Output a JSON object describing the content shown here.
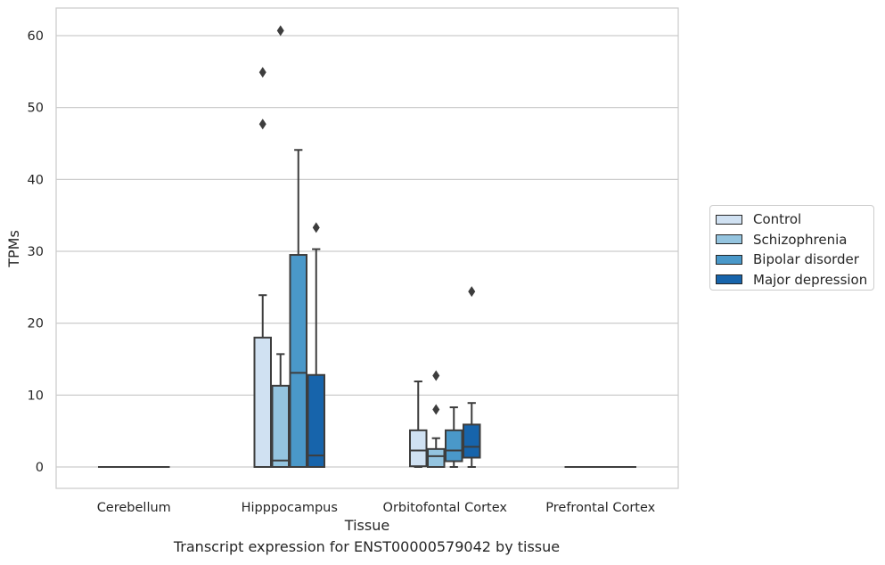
{
  "chart_data": {
    "type": "box",
    "xlabel": "Tissue",
    "ylabel": "TPMs",
    "caption": "Transcript expression for ENST00000579042 by tissue",
    "ylim": [
      -3,
      64
    ],
    "yticks": [
      0,
      10,
      20,
      30,
      40,
      50,
      60
    ],
    "grid": true,
    "legend_position": "right",
    "categories": [
      "Cerebellum",
      "Hipppocampus",
      "Orbitofontal Cortex",
      "Prefrontal Cortex"
    ],
    "series": [
      {
        "name": "Control",
        "color": "#d0e1f2"
      },
      {
        "name": "Schizophrenia",
        "color": "#94c4df"
      },
      {
        "name": "Bipolar disorder",
        "color": "#4a98c9"
      },
      {
        "name": "Major depression",
        "color": "#1764ab"
      }
    ],
    "boxes": [
      {
        "category": "Cerebellum",
        "series": "Control",
        "min": 0,
        "q1": 0,
        "median": 0,
        "q3": 0,
        "max": 0,
        "outliers": []
      },
      {
        "category": "Cerebellum",
        "series": "Schizophrenia",
        "min": 0,
        "q1": 0,
        "median": 0,
        "q3": 0,
        "max": 0,
        "outliers": []
      },
      {
        "category": "Cerebellum",
        "series": "Bipolar disorder",
        "min": 0,
        "q1": 0,
        "median": 0,
        "q3": 0,
        "max": 0,
        "outliers": []
      },
      {
        "category": "Cerebellum",
        "series": "Major depression",
        "min": 0,
        "q1": 0,
        "median": 0,
        "q3": 0,
        "max": 0,
        "outliers": []
      },
      {
        "category": "Hipppocampus",
        "series": "Control",
        "min": 0,
        "q1": 0,
        "median": 0,
        "q3": 18.0,
        "max": 23.9,
        "outliers": [
          47.7,
          54.9
        ]
      },
      {
        "category": "Hipppocampus",
        "series": "Schizophrenia",
        "min": 0,
        "q1": 0,
        "median": 0.9,
        "q3": 11.3,
        "max": 15.7,
        "outliers": [
          60.7
        ]
      },
      {
        "category": "Hipppocampus",
        "series": "Bipolar disorder",
        "min": 0,
        "q1": 0,
        "median": 13.1,
        "q3": 29.5,
        "max": 44.1,
        "outliers": []
      },
      {
        "category": "Hipppocampus",
        "series": "Major depression",
        "min": 0,
        "q1": 0,
        "median": 1.6,
        "q3": 12.8,
        "max": 30.3,
        "outliers": [
          33.3
        ]
      },
      {
        "category": "Orbitofontal Cortex",
        "series": "Control",
        "min": 0,
        "q1": 0.1,
        "median": 2.3,
        "q3": 5.1,
        "max": 11.9,
        "outliers": []
      },
      {
        "category": "Orbitofontal Cortex",
        "series": "Schizophrenia",
        "min": 0,
        "q1": 0,
        "median": 1.5,
        "q3": 2.5,
        "max": 4.0,
        "outliers": [
          8.0,
          12.7
        ]
      },
      {
        "category": "Orbitofontal Cortex",
        "series": "Bipolar disorder",
        "min": 0,
        "q1": 0.8,
        "median": 2.3,
        "q3": 5.1,
        "max": 8.3,
        "outliers": []
      },
      {
        "category": "Orbitofontal Cortex",
        "series": "Major depression",
        "min": 0,
        "q1": 1.3,
        "median": 2.8,
        "q3": 5.9,
        "max": 8.9,
        "outliers": [
          24.4
        ]
      },
      {
        "category": "Prefrontal Cortex",
        "series": "Control",
        "min": 0,
        "q1": 0,
        "median": 0,
        "q3": 0,
        "max": 0,
        "outliers": []
      },
      {
        "category": "Prefrontal Cortex",
        "series": "Schizophrenia",
        "min": 0,
        "q1": 0,
        "median": 0,
        "q3": 0,
        "max": 0,
        "outliers": []
      },
      {
        "category": "Prefrontal Cortex",
        "series": "Bipolar disorder",
        "min": 0,
        "q1": 0,
        "median": 0,
        "q3": 0,
        "max": 0,
        "outliers": []
      },
      {
        "category": "Prefrontal Cortex",
        "series": "Major depression",
        "min": 0,
        "q1": 0,
        "median": 0,
        "q3": 0,
        "max": 0,
        "outliers": []
      }
    ]
  }
}
